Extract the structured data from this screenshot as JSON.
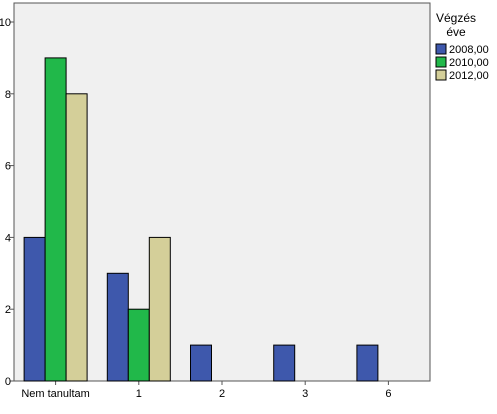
{
  "chart_data": {
    "type": "bar",
    "categories": [
      "Nem tanultam",
      "1",
      "2",
      "3",
      "6"
    ],
    "series": [
      {
        "name": "2008,00",
        "color": "#3e58ac",
        "values": [
          4,
          3,
          1,
          1,
          1
        ]
      },
      {
        "name": "2010,00",
        "color": "#21b84a",
        "values": [
          9,
          2,
          0,
          0,
          0
        ]
      },
      {
        "name": "2012,00",
        "color": "#d4cf99",
        "values": [
          8,
          4,
          0,
          0,
          0
        ]
      }
    ],
    "legend_title": [
      "Végzés",
      "éve"
    ],
    "title": "",
    "xlabel": "",
    "ylabel": "",
    "ylim": [
      0,
      10
    ],
    "yticks": [
      0,
      2,
      4,
      6,
      8,
      10
    ],
    "legend_position": "right",
    "plot_background": "#f0f0f0",
    "grid": false
  }
}
